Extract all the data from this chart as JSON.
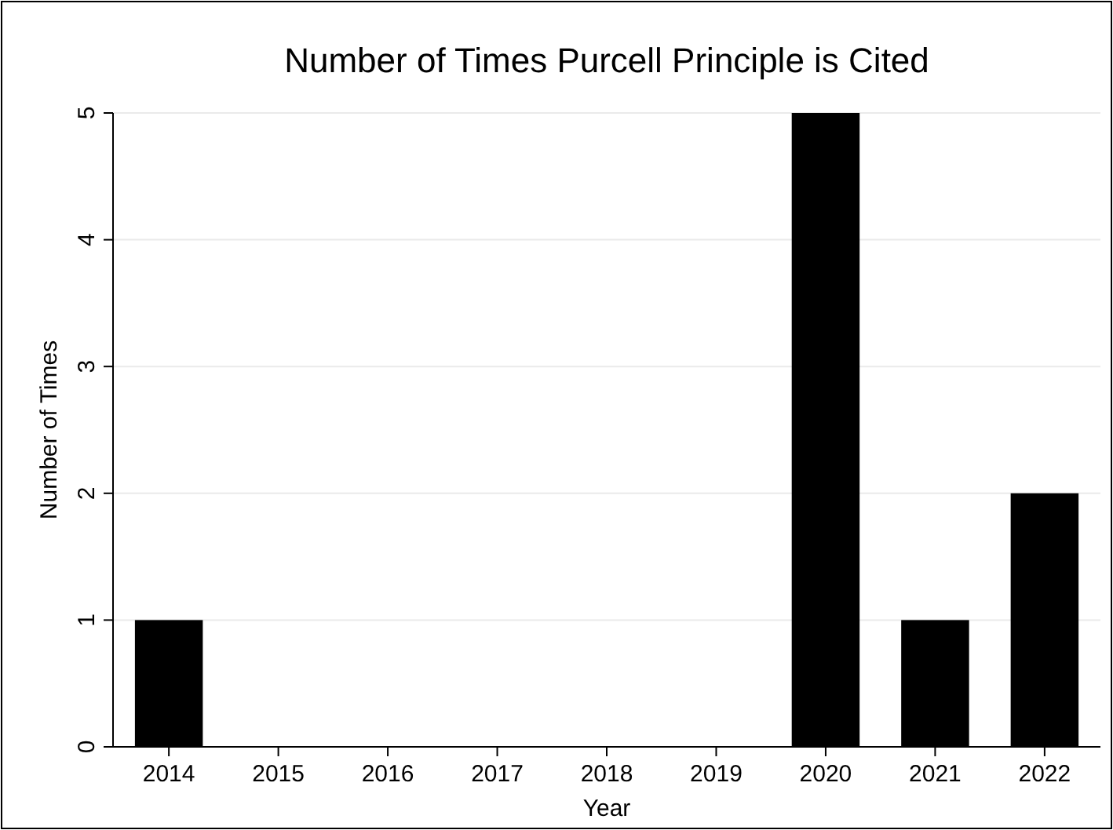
{
  "chart_data": {
    "type": "bar",
    "title": "Number of Times Purcell Principle is Cited",
    "xlabel": "Year",
    "ylabel": "Number of Times",
    "categories": [
      "2014",
      "2015",
      "2016",
      "2017",
      "2018",
      "2019",
      "2020",
      "2021",
      "2022"
    ],
    "values": [
      1,
      0,
      0,
      0,
      0,
      0,
      5,
      1,
      2
    ],
    "color": "#000000",
    "ylim": [
      0,
      5
    ],
    "yticks": [
      0,
      1,
      2,
      3,
      4,
      5
    ],
    "grid": "y"
  }
}
